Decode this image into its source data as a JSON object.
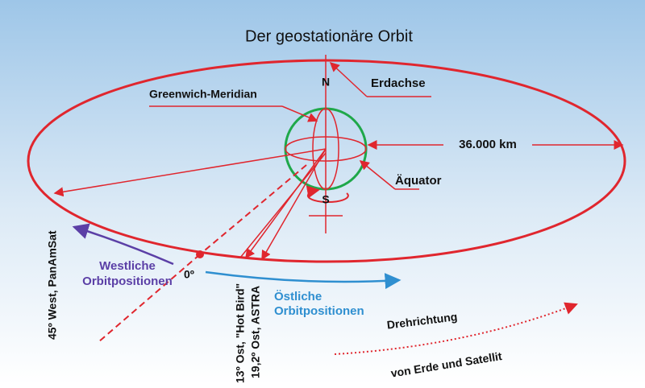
{
  "title": "Der geostationäre Orbit",
  "labels": {
    "north": "N",
    "south": "S",
    "axis": "Erdachse",
    "meridian": "Greenwich-Meridian",
    "distance": "36.000 km",
    "equator": "Äquator",
    "west45": "45º West, PanAmSat",
    "west_positions": [
      "Westliche",
      "Orbitpositionen"
    ],
    "zero": "0º",
    "hotbird": "13º Ost, \"Hot Bird\"",
    "astra": "19,2º Ost, ASTRA",
    "east_positions": [
      "Östliche",
      "Orbitpositionen"
    ],
    "rotation": [
      "Drehrichtung",
      "von Erde und Satellit"
    ]
  }
}
